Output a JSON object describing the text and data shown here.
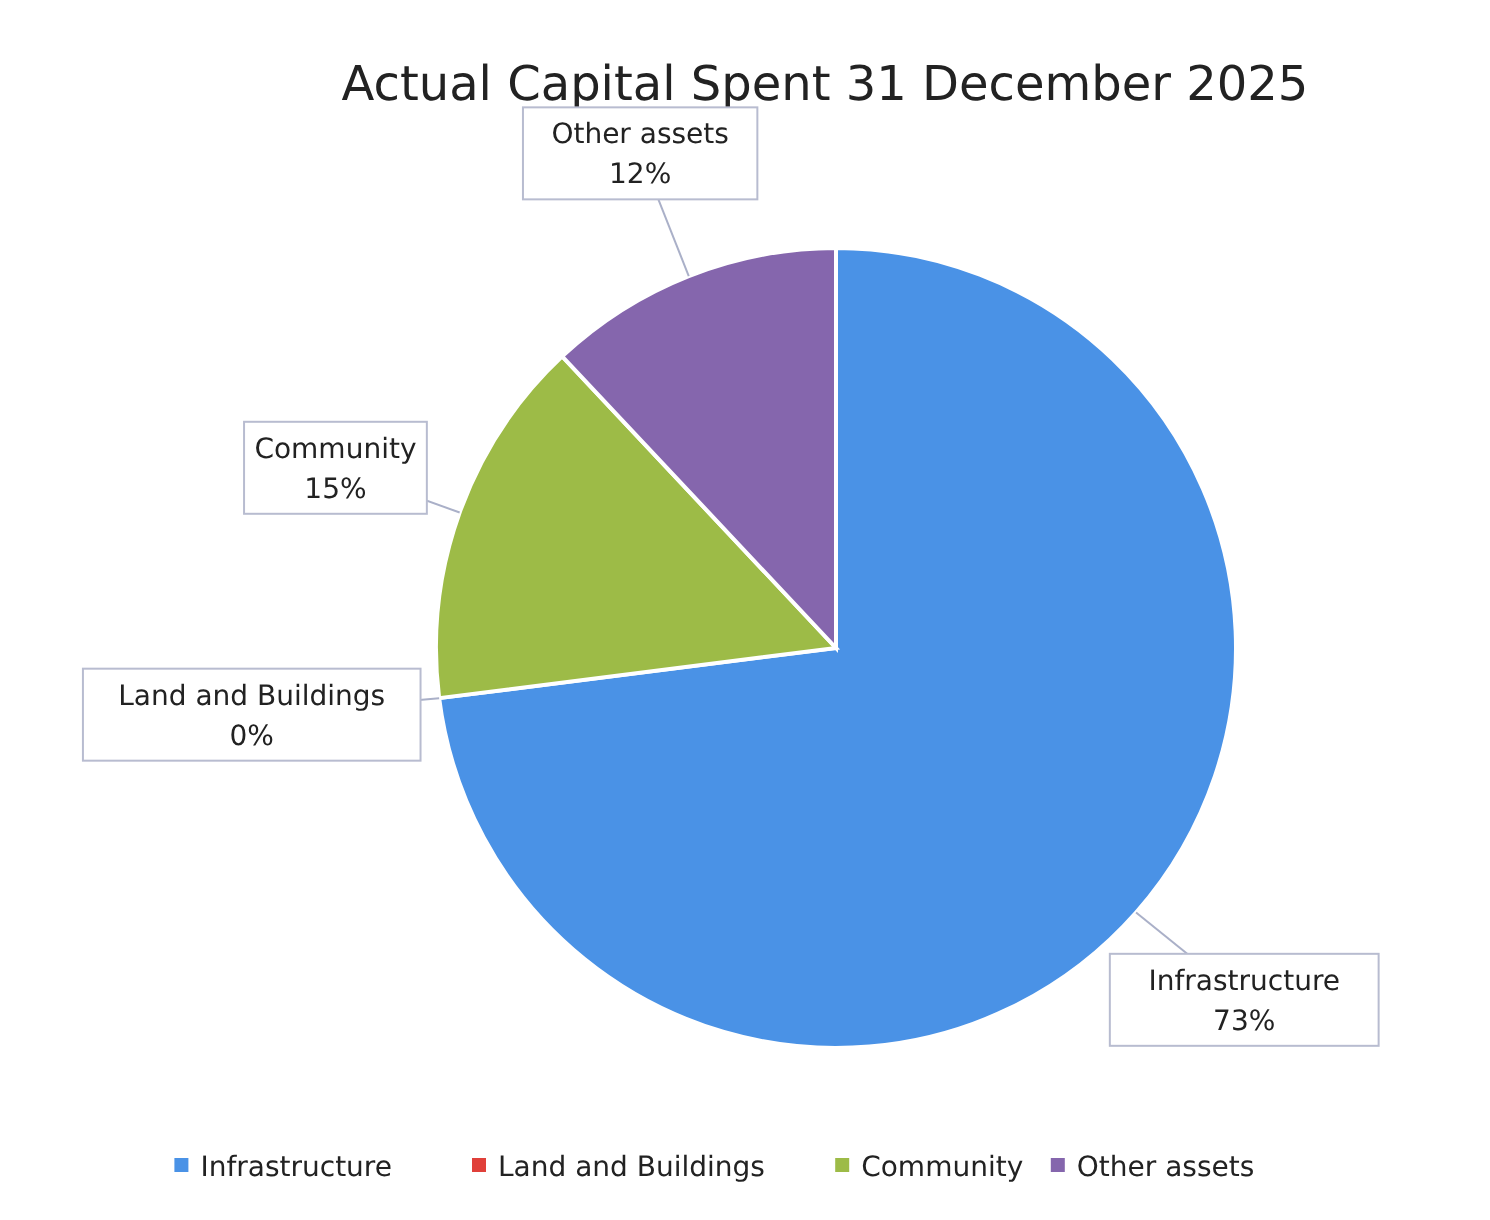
{
  "chart_data": {
    "type": "pie",
    "title": "Actual Capital Spent 31 December 2025",
    "categories": [
      "Infrastructure",
      "Land and Buildings",
      "Community",
      "Other assets"
    ],
    "values": [
      73,
      0,
      15,
      12
    ],
    "value_labels": [
      "73%",
      "0%",
      "15%",
      "12%"
    ],
    "colors": [
      "#4a92e6",
      "#e0403a",
      "#9dbb47",
      "#8566ad"
    ],
    "legend": "bottom"
  }
}
